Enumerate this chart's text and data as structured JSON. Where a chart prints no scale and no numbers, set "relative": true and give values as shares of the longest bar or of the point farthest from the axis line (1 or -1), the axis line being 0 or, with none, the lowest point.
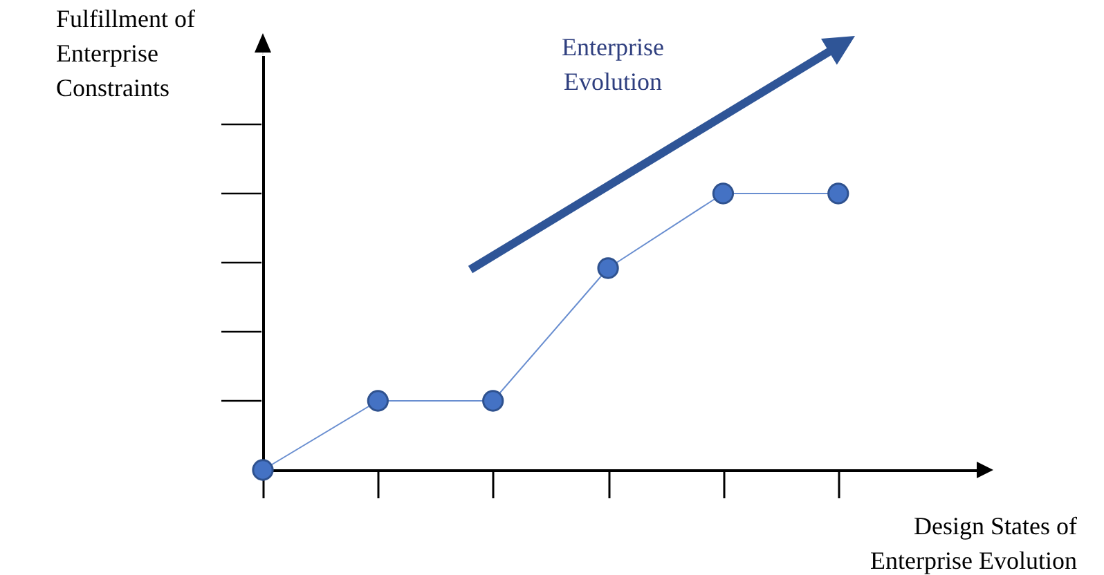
{
  "chart_data": {
    "type": "line",
    "relative": true,
    "ylabel": "Fulfillment of Enterprise Constraints",
    "xlabel": "Design States of Enterprise Evolution",
    "annotations": [
      "Enterprise Evolution"
    ],
    "categories": [
      null,
      null,
      null,
      null,
      null,
      null
    ],
    "marker": "circle",
    "series": [
      {
        "color": "#4472c4",
        "values": [
          0,
          0.25,
          0.25,
          0.73,
          1,
          1
        ]
      }
    ]
  }
}
